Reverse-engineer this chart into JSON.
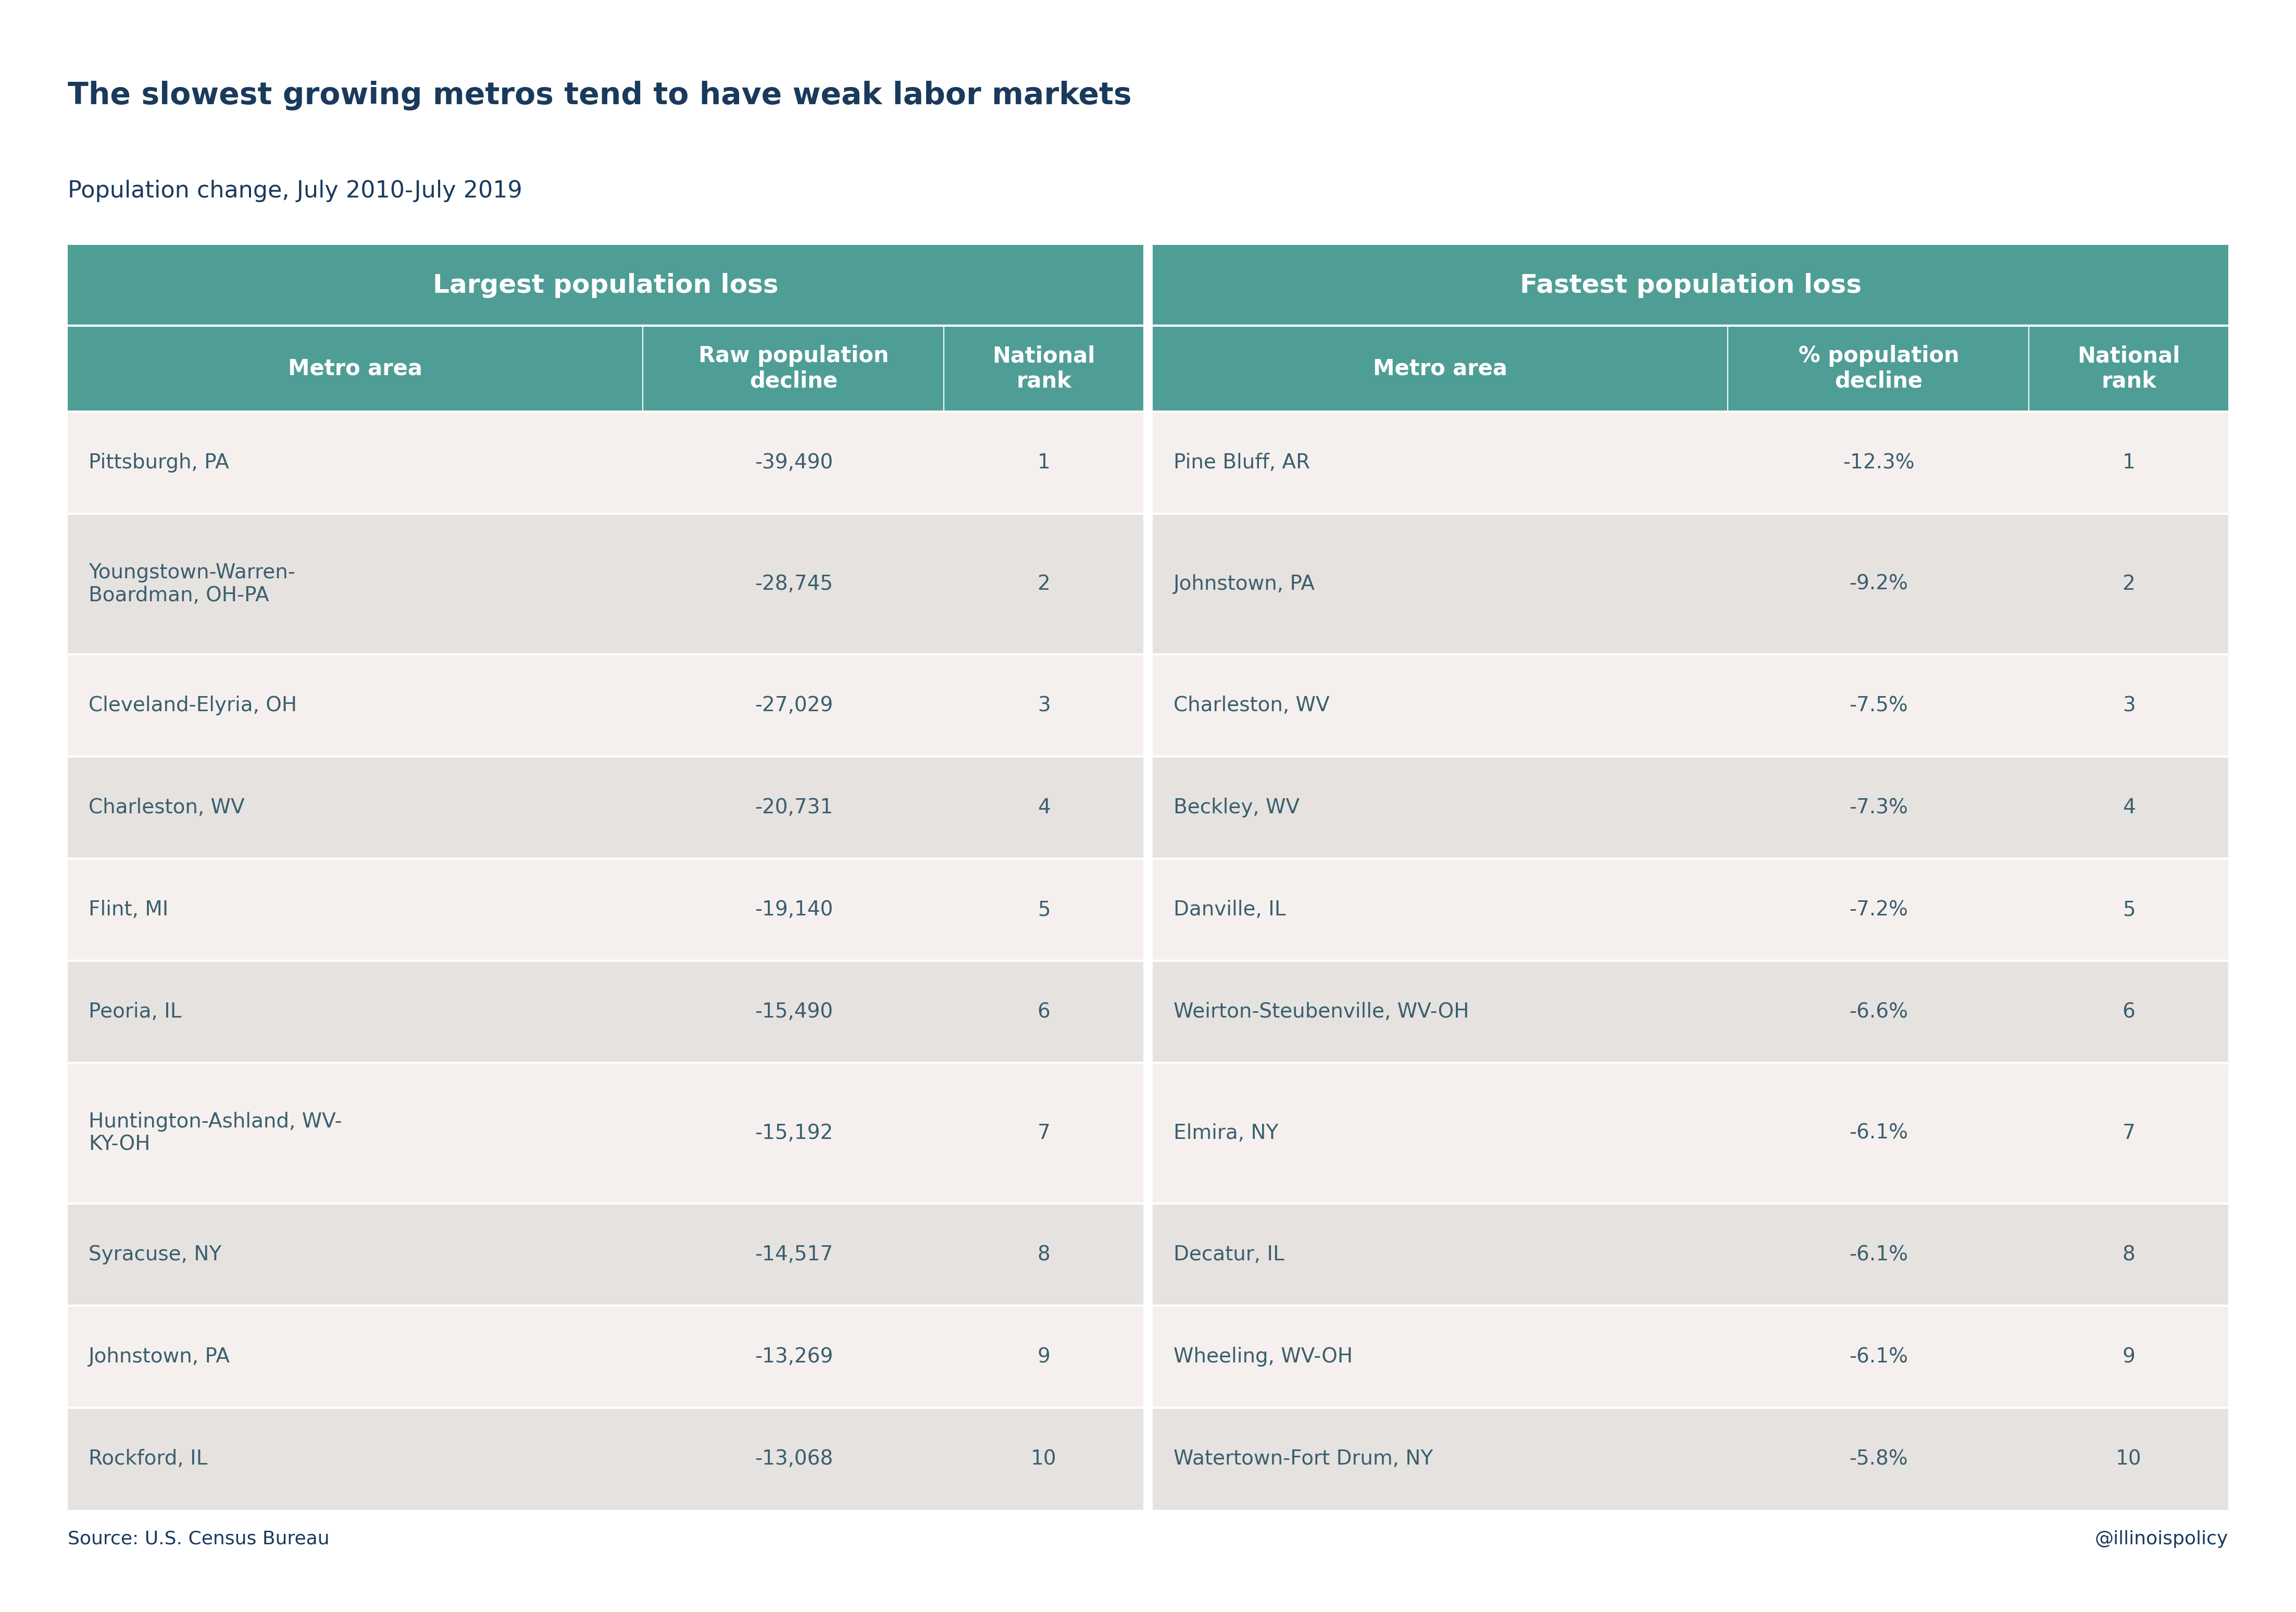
{
  "title": "The slowest growing metros tend to have weak labor markets",
  "subtitle": "Population change, July 2010-July 2019",
  "source": "Source: U.S. Census Bureau",
  "credit": "@illinoispolicy",
  "title_color": "#1a3a5c",
  "subtitle_color": "#1a3a5c",
  "source_color": "#1a3a5c",
  "header_bg_color": "#4f9e96",
  "header_text_color": "#ffffff",
  "row_bg_odd": "#f5f0ee",
  "row_bg_even": "#e6e2e0",
  "cell_text_color": "#3a5f6f",
  "left_section_title": "Largest population loss",
  "right_section_title": "Fastest population loss",
  "left_col_headers": [
    "Metro area",
    "Raw population\ndecline",
    "National\nrank"
  ],
  "right_col_headers": [
    "Metro area",
    "% population\ndecline",
    "National\nrank"
  ],
  "left_data": [
    [
      "Pittsburgh, PA",
      "-39,490",
      "1"
    ],
    [
      "Youngstown-Warren-\nBoardman, OH-PA",
      "-28,745",
      "2"
    ],
    [
      "Cleveland-Elyria, OH",
      "-27,029",
      "3"
    ],
    [
      "Charleston, WV",
      "-20,731",
      "4"
    ],
    [
      "Flint, MI",
      "-19,140",
      "5"
    ],
    [
      "Peoria, IL",
      "-15,490",
      "6"
    ],
    [
      "Huntington-Ashland, WV-\nKY-OH",
      "-15,192",
      "7"
    ],
    [
      "Syracuse, NY",
      "-14,517",
      "8"
    ],
    [
      "Johnstown, PA",
      "-13,269",
      "9"
    ],
    [
      "Rockford, IL",
      "-13,068",
      "10"
    ]
  ],
  "right_data": [
    [
      "Pine Bluff, AR",
      "-12.3%",
      "1"
    ],
    [
      "Johnstown, PA",
      "-9.2%",
      "2"
    ],
    [
      "Charleston, WV",
      "-7.5%",
      "3"
    ],
    [
      "Beckley, WV",
      "-7.3%",
      "4"
    ],
    [
      "Danville, IL",
      "-7.2%",
      "5"
    ],
    [
      "Weirton-Steubenville, WV-OH",
      "-6.6%",
      "6"
    ],
    [
      "Elmira, NY",
      "-6.1%",
      "7"
    ],
    [
      "Decatur, IL",
      "-6.1%",
      "8"
    ],
    [
      "Wheeling, WV-OH",
      "-6.1%",
      "9"
    ],
    [
      "Watertown-Fort Drum, NY",
      "-5.8%",
      "10"
    ]
  ],
  "row_is_tall": [
    false,
    true,
    false,
    false,
    false,
    false,
    true,
    false,
    false,
    false
  ]
}
